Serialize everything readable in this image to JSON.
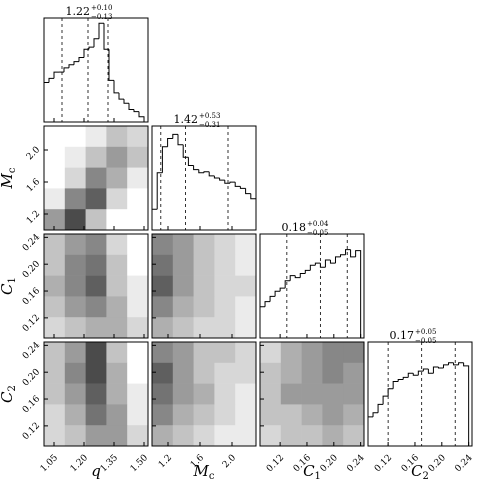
{
  "chart_data": {
    "type": "corner",
    "hist_ylim": [
      0,
      100
    ],
    "parameters": [
      {
        "label": "q",
        "sub": "",
        "lim": [
          1.0,
          1.52
        ],
        "ticks": [
          1.05,
          {
            "value": 1.2,
            "label": "1.20"
          },
          1.35,
          {
            "value": 1.5,
            "label": "1.50"
          }
        ],
        "bins": [
          1.0,
          1.025,
          1.05,
          1.075,
          1.1,
          1.125,
          1.15,
          1.175,
          1.2,
          1.225,
          1.25,
          1.275,
          1.3,
          1.325,
          1.35,
          1.375,
          1.4,
          1.425,
          1.45,
          1.475,
          1.5
        ],
        "counts": [
          38,
          42,
          48,
          48,
          52,
          55,
          58,
          62,
          70,
          72,
          80,
          95,
          70,
          40,
          28,
          22,
          18,
          12,
          10,
          5
        ],
        "quantiles": [
          1.09,
          1.22,
          1.32
        ],
        "title_center": "1.22",
        "title_upper": "+0.10",
        "title_lower": "−0.13",
        "densities": []
      },
      {
        "label": "M",
        "sub": "c",
        "lim": [
          1.0,
          2.3
        ],
        "ticks": [
          1.2,
          1.6,
          {
            "value": 2.0,
            "label": "2.0"
          }
        ],
        "bins": [
          1.0,
          1.065,
          1.13,
          1.195,
          1.26,
          1.325,
          1.39,
          1.455,
          1.52,
          1.585,
          1.65,
          1.715,
          1.78,
          1.845,
          1.91,
          1.975,
          2.04,
          2.105,
          2.17,
          2.235,
          2.3
        ],
        "counts": [
          20,
          55,
          80,
          88,
          92,
          82,
          70,
          62,
          58,
          55,
          56,
          52,
          50,
          48,
          45,
          46,
          42,
          40,
          35,
          30
        ],
        "quantiles": [
          1.11,
          1.42,
          1.95
        ],
        "title_center": "1.42",
        "title_upper": "+0.53",
        "title_lower": "−0.31",
        "densities": [
          [
            [
              0,
              0,
              0.1,
              0.3,
              0.2
            ],
            [
              0,
              0.1,
              0.3,
              0.5,
              0.3
            ],
            [
              0,
              0.2,
              0.6,
              0.4,
              0.1
            ],
            [
              0.1,
              0.6,
              0.8,
              0.2,
              0
            ],
            [
              0.5,
              0.9,
              0.3,
              0,
              0
            ]
          ]
        ]
      },
      {
        "label": "C",
        "sub": "1",
        "lim": [
          0.09,
          0.245
        ],
        "ticks": [
          0.12,
          0.16,
          {
            "value": 0.2,
            "label": "0.20"
          },
          0.24
        ],
        "bins": [
          0.09,
          0.0975,
          0.105,
          0.1125,
          0.12,
          0.1275,
          0.135,
          0.1425,
          0.15,
          0.1575,
          0.165,
          0.1725,
          0.18,
          0.1875,
          0.195,
          0.2025,
          0.21,
          0.2175,
          0.225,
          0.2325,
          0.24
        ],
        "counts": [
          30,
          35,
          40,
          45,
          48,
          55,
          60,
          58,
          62,
          65,
          70,
          72,
          68,
          75,
          72,
          78,
          80,
          85,
          78,
          84
        ],
        "quantiles": [
          0.13,
          0.18,
          0.22
        ],
        "title_center": "0.18",
        "title_upper": "+0.04",
        "title_lower": "−0.05",
        "densities": [
          [
            [
              0.3,
              0.5,
              0.6,
              0.2,
              0
            ],
            [
              0.3,
              0.6,
              0.7,
              0.3,
              0
            ],
            [
              0.4,
              0.6,
              0.8,
              0.3,
              0.1
            ],
            [
              0.3,
              0.5,
              0.6,
              0.4,
              0.1
            ],
            [
              0.2,
              0.3,
              0.4,
              0.4,
              0.2
            ]
          ],
          [
            [
              0.6,
              0.5,
              0.3,
              0.2,
              0.1
            ],
            [
              0.7,
              0.5,
              0.3,
              0.2,
              0.1
            ],
            [
              0.8,
              0.5,
              0.3,
              0.2,
              0.2
            ],
            [
              0.6,
              0.4,
              0.3,
              0.2,
              0.1
            ],
            [
              0.4,
              0.3,
              0.2,
              0.2,
              0.1
            ]
          ]
        ]
      },
      {
        "label": "C",
        "sub": "2",
        "lim": [
          0.09,
          0.245
        ],
        "ticks": [
          0.12,
          0.16,
          {
            "value": 0.2,
            "label": "0.20"
          },
          0.24
        ],
        "bins": [
          0.09,
          0.0975,
          0.105,
          0.1125,
          0.12,
          0.1275,
          0.135,
          0.1425,
          0.15,
          0.1575,
          0.165,
          0.1725,
          0.18,
          0.1875,
          0.195,
          0.2025,
          0.21,
          0.2175,
          0.225,
          0.2325,
          0.24
        ],
        "counts": [
          28,
          32,
          40,
          48,
          55,
          62,
          64,
          66,
          70,
          68,
          72,
          74,
          70,
          76,
          75,
          78,
          80,
          78,
          80,
          77
        ],
        "quantiles": [
          0.12,
          0.17,
          0.22
        ],
        "title_center": "0.17",
        "title_upper": "+0.05",
        "title_lower": "−0.05",
        "densities": [
          [
            [
              0.3,
              0.5,
              0.9,
              0.3,
              0
            ],
            [
              0.3,
              0.6,
              0.9,
              0.4,
              0
            ],
            [
              0.3,
              0.5,
              0.8,
              0.4,
              0.1
            ],
            [
              0.2,
              0.4,
              0.7,
              0.5,
              0.1
            ],
            [
              0.2,
              0.3,
              0.5,
              0.5,
              0.2
            ]
          ],
          [
            [
              0.6,
              0.5,
              0.3,
              0.3,
              0.2
            ],
            [
              0.8,
              0.5,
              0.3,
              0.2,
              0.2
            ],
            [
              0.7,
              0.5,
              0.4,
              0.2,
              0.1
            ],
            [
              0.6,
              0.4,
              0.3,
              0.2,
              0.1
            ],
            [
              0.4,
              0.3,
              0.2,
              0.1,
              0.1
            ]
          ],
          [
            [
              0.2,
              0.4,
              0.5,
              0.6,
              0.6
            ],
            [
              0.3,
              0.4,
              0.5,
              0.6,
              0.5
            ],
            [
              0.3,
              0.5,
              0.5,
              0.5,
              0.5
            ],
            [
              0.3,
              0.3,
              0.4,
              0.5,
              0.4
            ],
            [
              0.2,
              0.3,
              0.3,
              0.4,
              0.3
            ]
          ]
        ]
      }
    ]
  }
}
